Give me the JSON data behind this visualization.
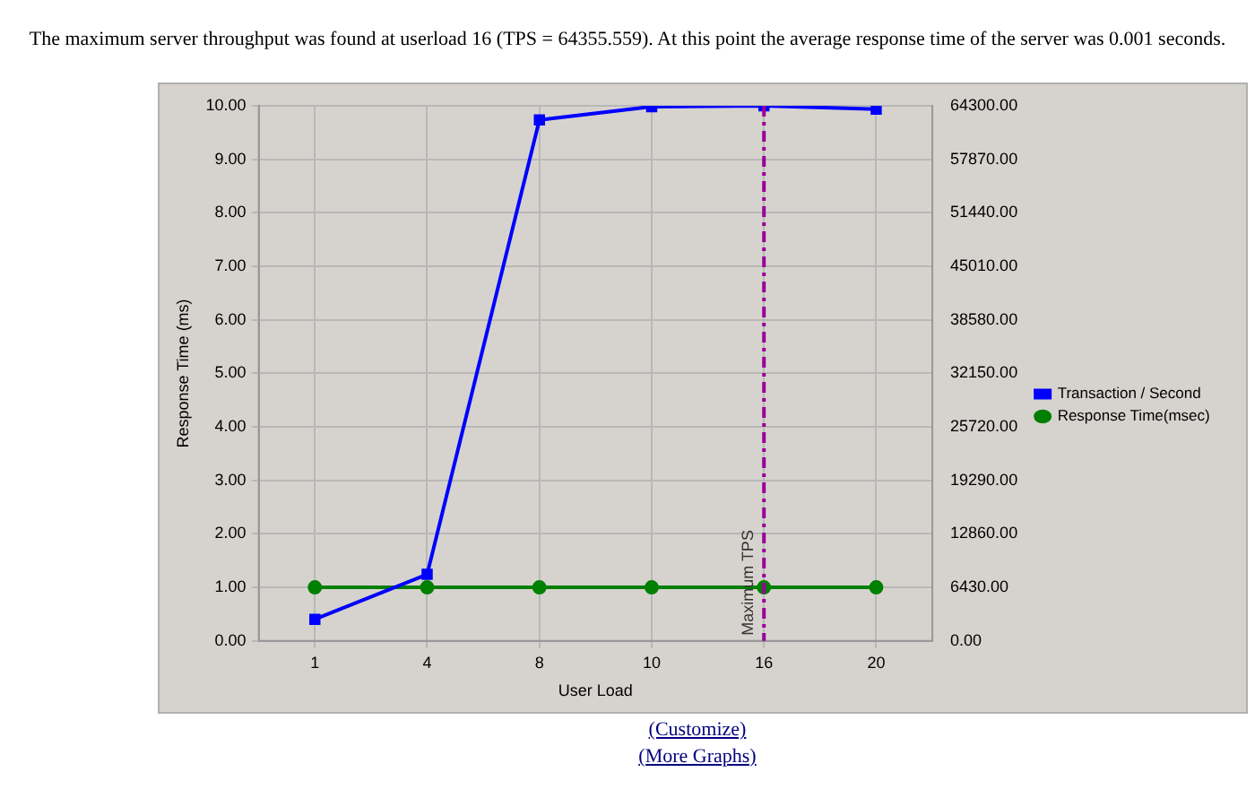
{
  "chart_data": {
    "type": "line",
    "title": "The maximum server throughput was found at userload 16 (TPS = 64355.559). At this point the average response time of the server was 0.001 seconds.",
    "xlabel": "User Load",
    "ylabel": "Response Time (ms)",
    "categories": [
      "1",
      "4",
      "8",
      "10",
      "16",
      "20"
    ],
    "series": [
      {
        "name": "Transaction / Second",
        "color": "#0000ff",
        "axis": "y2",
        "marker": "square",
        "values": [
          2600,
          8000,
          62600,
          64200,
          64300,
          63900
        ]
      },
      {
        "name": "Response Time(msec)",
        "color": "#007f00",
        "marker": "circle",
        "values": [
          1,
          1,
          1,
          1,
          1,
          1
        ]
      }
    ],
    "ylim": [
      0,
      10
    ],
    "yticks": [
      {
        "value": 0,
        "label": "0.00"
      },
      {
        "value": 1,
        "label": "1.00"
      },
      {
        "value": 2,
        "label": "2.00"
      },
      {
        "value": 3,
        "label": "3.00"
      },
      {
        "value": 4,
        "label": "4.00"
      },
      {
        "value": 5,
        "label": "5.00"
      },
      {
        "value": 6,
        "label": "6.00"
      },
      {
        "value": 7,
        "label": "7.00"
      },
      {
        "value": 8,
        "label": "8.00"
      },
      {
        "value": 9,
        "label": "9.00"
      },
      {
        "value": 10,
        "label": "10.00"
      }
    ],
    "y2lim": [
      0,
      64300
    ],
    "y2ticks": [
      {
        "value": 0,
        "label": "0.00"
      },
      {
        "value": 6430,
        "label": "6430.00"
      },
      {
        "value": 12860,
        "label": "12860.00"
      },
      {
        "value": 19290,
        "label": "19290.00"
      },
      {
        "value": 25720,
        "label": "25720.00"
      },
      {
        "value": 32150,
        "label": "32150.00"
      },
      {
        "value": 38580,
        "label": "38580.00"
      },
      {
        "value": 45010,
        "label": "45010.00"
      },
      {
        "value": 51440,
        "label": "51440.00"
      },
      {
        "value": 57870,
        "label": "57870.00"
      },
      {
        "value": 64300,
        "label": "64300.00"
      }
    ],
    "ref_lines": [
      {
        "axis": "x",
        "value": "16",
        "label": "Maximum TPS",
        "color": "#990099",
        "line_style": "dashdot"
      }
    ],
    "grid": true,
    "legend": "right",
    "line_style": "solid",
    "annotations": [
      "(Customize)",
      "(More Graphs)"
    ]
  }
}
